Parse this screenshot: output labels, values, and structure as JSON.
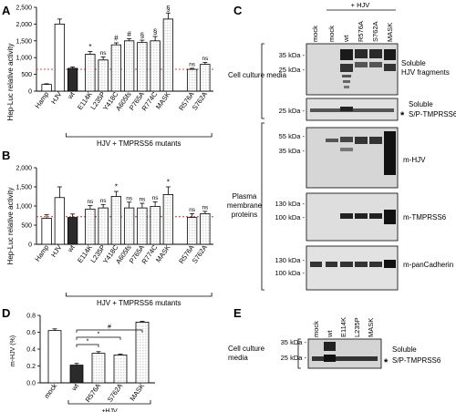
{
  "panel_labels": {
    "A": "A",
    "B": "B",
    "C": "C",
    "D": "D",
    "E": "E"
  },
  "chart_data": [
    {
      "id": "A",
      "type": "bar",
      "ylabel": "Hep-Luc relative activity",
      "ylim": [
        0,
        2500
      ],
      "yticks": [
        "0",
        "500",
        "1,000",
        "1,500",
        "2,000",
        "2,500"
      ],
      "reference_line": 650,
      "categories": [
        "Hamp",
        "HJV",
        "wt",
        "E114K",
        "L235P",
        "Y418C",
        "A605fs",
        "P765A",
        "R774C",
        "MASK",
        "R576A",
        "S762A"
      ],
      "values": [
        200,
        2000,
        680,
        1100,
        930,
        1380,
        1500,
        1450,
        1500,
        2150,
        650,
        800
      ],
      "errors": [
        20,
        150,
        40,
        80,
        90,
        60,
        60,
        70,
        130,
        180,
        30,
        60
      ],
      "significance": [
        "",
        "",
        "",
        "*",
        "ns",
        "#",
        "#",
        "§",
        "§",
        "§",
        "ns",
        "ns"
      ],
      "group_label": "HJV + TMPRSS6 mutants"
    },
    {
      "id": "B",
      "type": "bar",
      "ylabel": "Hep-Luc relative activity",
      "ylim": [
        0,
        2000
      ],
      "yticks": [
        "0",
        "500",
        "1,000",
        "1,500",
        "2,000"
      ],
      "reference_line": 720,
      "categories": [
        "Hamp",
        "HJV",
        "wt",
        "E114K",
        "L235P",
        "Y418C",
        "A605fs",
        "P765A",
        "R774C",
        "MASK",
        "R576A",
        "S762A"
      ],
      "values": [
        680,
        1220,
        700,
        920,
        950,
        1250,
        950,
        950,
        990,
        1300,
        700,
        800
      ],
      "errors": [
        90,
        280,
        90,
        90,
        90,
        130,
        150,
        120,
        120,
        200,
        100,
        60
      ],
      "significance": [
        "",
        "",
        "",
        "ns",
        "ns",
        "*",
        "ns",
        "ns",
        "ns",
        "*",
        "ns",
        "ns"
      ],
      "group_label": "HJV + TMPRSS6 mutants"
    },
    {
      "id": "D",
      "type": "bar",
      "ylabel": "m-HJV (%)",
      "ylim": [
        0,
        0.8
      ],
      "yticks": [
        "0.0",
        "0.2",
        "0.4",
        "0.6",
        "0.8"
      ],
      "categories": [
        "mock",
        "wt",
        "R576A",
        "S762A",
        "MASK"
      ],
      "values": [
        0.62,
        0.21,
        0.35,
        0.33,
        0.72
      ],
      "errors": [
        0.02,
        0.02,
        0.02,
        0.01,
        0.01
      ],
      "comparisons": [
        "*",
        "*",
        "#"
      ],
      "group_label": "+HJV"
    }
  ],
  "blot_C": {
    "lane_labels": [
      "mock",
      "mock",
      "wt",
      "R576A",
      "S762A",
      "MASK"
    ],
    "treatment_label": "+ HJV",
    "section_media": "Cell culture media",
    "section_membrane": "Plasma membrane proteins",
    "kda": [
      "35 kDa -",
      "25 kDa -",
      "25 kDa -",
      "55 kDa -",
      "35 kDa -",
      "130 kDa -",
      "100 kDa -",
      "130 kDa -",
      "100 kDa -"
    ],
    "band_labels": [
      "Soluble HJV fragments",
      "Soluble S/P-TMPRSS6",
      "m-HJV",
      "m-TMPRSS6",
      "m-panCadherin"
    ],
    "asterisk": "*"
  },
  "blot_E": {
    "lane_labels": [
      "mock",
      "wt",
      "E114K",
      "L235P",
      "MASK"
    ],
    "section_label": "Cell culture media",
    "kda": [
      "35 kDa -",
      "25 kDa -"
    ],
    "band_label": "Soluble S/P-TMPRSS6",
    "asterisk": "*"
  }
}
